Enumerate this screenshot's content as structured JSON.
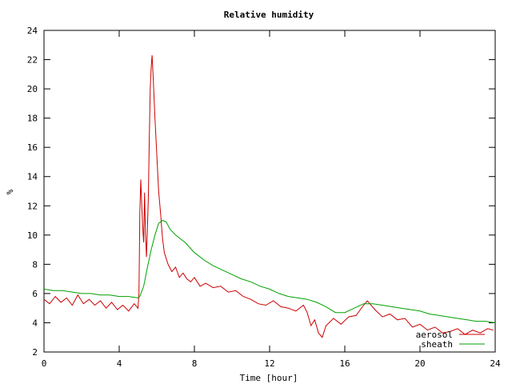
{
  "chart_data": {
    "type": "line",
    "title": "Relative humidity",
    "xlabel": "Time [hour]",
    "ylabel": "%",
    "xlim": [
      0,
      24
    ],
    "ylim": [
      2,
      24
    ],
    "x_ticks": [
      0,
      4,
      8,
      12,
      16,
      20,
      24
    ],
    "y_ticks": [
      2,
      4,
      6,
      8,
      10,
      12,
      14,
      16,
      18,
      20,
      22,
      24
    ],
    "grid": false,
    "legend_position": "bottom-right",
    "series": [
      {
        "name": "aerosol",
        "color": "#cc0000",
        "points": [
          [
            0.0,
            5.6
          ],
          [
            0.3,
            5.3
          ],
          [
            0.6,
            5.8
          ],
          [
            0.9,
            5.4
          ],
          [
            1.2,
            5.7
          ],
          [
            1.5,
            5.2
          ],
          [
            1.8,
            5.9
          ],
          [
            2.1,
            5.3
          ],
          [
            2.4,
            5.6
          ],
          [
            2.7,
            5.2
          ],
          [
            3.0,
            5.5
          ],
          [
            3.3,
            5.0
          ],
          [
            3.6,
            5.4
          ],
          [
            3.9,
            4.9
          ],
          [
            4.2,
            5.2
          ],
          [
            4.5,
            4.8
          ],
          [
            4.8,
            5.3
          ],
          [
            5.0,
            5.0
          ],
          [
            5.05,
            6.0
          ],
          [
            5.1,
            11.6
          ],
          [
            5.15,
            13.8
          ],
          [
            5.2,
            12.0
          ],
          [
            5.25,
            10.5
          ],
          [
            5.3,
            9.5
          ],
          [
            5.35,
            12.9
          ],
          [
            5.4,
            10.0
          ],
          [
            5.45,
            8.5
          ],
          [
            5.5,
            10.5
          ],
          [
            5.55,
            12.5
          ],
          [
            5.6,
            16.5
          ],
          [
            5.65,
            20.0
          ],
          [
            5.7,
            21.5
          ],
          [
            5.75,
            22.3
          ],
          [
            5.8,
            21.0
          ],
          [
            5.85,
            19.5
          ],
          [
            5.9,
            18.0
          ],
          [
            6.0,
            15.5
          ],
          [
            6.1,
            13.0
          ],
          [
            6.2,
            11.5
          ],
          [
            6.3,
            9.8
          ],
          [
            6.4,
            8.8
          ],
          [
            6.6,
            8.0
          ],
          [
            6.8,
            7.5
          ],
          [
            7.0,
            7.8
          ],
          [
            7.2,
            7.1
          ],
          [
            7.4,
            7.4
          ],
          [
            7.6,
            7.0
          ],
          [
            7.8,
            6.8
          ],
          [
            8.0,
            7.1
          ],
          [
            8.3,
            6.5
          ],
          [
            8.6,
            6.7
          ],
          [
            9.0,
            6.4
          ],
          [
            9.4,
            6.5
          ],
          [
            9.8,
            6.1
          ],
          [
            10.2,
            6.2
          ],
          [
            10.6,
            5.8
          ],
          [
            11.0,
            5.6
          ],
          [
            11.4,
            5.3
          ],
          [
            11.8,
            5.2
          ],
          [
            12.2,
            5.5
          ],
          [
            12.6,
            5.1
          ],
          [
            13.0,
            5.0
          ],
          [
            13.4,
            4.8
          ],
          [
            13.8,
            5.2
          ],
          [
            14.0,
            4.7
          ],
          [
            14.2,
            3.8
          ],
          [
            14.4,
            4.2
          ],
          [
            14.6,
            3.3
          ],
          [
            14.8,
            3.0
          ],
          [
            15.0,
            3.8
          ],
          [
            15.4,
            4.3
          ],
          [
            15.8,
            3.9
          ],
          [
            16.2,
            4.4
          ],
          [
            16.6,
            4.5
          ],
          [
            17.0,
            5.2
          ],
          [
            17.2,
            5.5
          ],
          [
            17.6,
            4.9
          ],
          [
            18.0,
            4.4
          ],
          [
            18.4,
            4.6
          ],
          [
            18.8,
            4.2
          ],
          [
            19.2,
            4.3
          ],
          [
            19.6,
            3.7
          ],
          [
            20.0,
            3.9
          ],
          [
            20.4,
            3.5
          ],
          [
            20.8,
            3.7
          ],
          [
            21.2,
            3.3
          ],
          [
            21.6,
            3.4
          ],
          [
            22.0,
            3.6
          ],
          [
            22.4,
            3.2
          ],
          [
            22.8,
            3.5
          ],
          [
            23.2,
            3.3
          ],
          [
            23.6,
            3.6
          ],
          [
            23.9,
            3.5
          ]
        ]
      },
      {
        "name": "sheath",
        "color": "#00a000",
        "points": [
          [
            0.0,
            6.3
          ],
          [
            0.5,
            6.2
          ],
          [
            1.0,
            6.2
          ],
          [
            1.5,
            6.1
          ],
          [
            2.0,
            6.0
          ],
          [
            2.5,
            6.0
          ],
          [
            3.0,
            5.9
          ],
          [
            3.5,
            5.9
          ],
          [
            4.0,
            5.8
          ],
          [
            4.5,
            5.8
          ],
          [
            5.0,
            5.7
          ],
          [
            5.1,
            5.8
          ],
          [
            5.3,
            6.5
          ],
          [
            5.5,
            7.8
          ],
          [
            5.7,
            9.0
          ],
          [
            5.9,
            10.0
          ],
          [
            6.1,
            10.8
          ],
          [
            6.3,
            11.0
          ],
          [
            6.5,
            10.9
          ],
          [
            6.7,
            10.4
          ],
          [
            7.0,
            10.0
          ],
          [
            7.5,
            9.5
          ],
          [
            8.0,
            8.8
          ],
          [
            8.5,
            8.3
          ],
          [
            9.0,
            7.9
          ],
          [
            9.5,
            7.6
          ],
          [
            10.0,
            7.3
          ],
          [
            10.5,
            7.0
          ],
          [
            11.0,
            6.8
          ],
          [
            11.5,
            6.5
          ],
          [
            12.0,
            6.3
          ],
          [
            12.5,
            6.0
          ],
          [
            13.0,
            5.8
          ],
          [
            13.5,
            5.7
          ],
          [
            14.0,
            5.6
          ],
          [
            14.5,
            5.4
          ],
          [
            15.0,
            5.1
          ],
          [
            15.5,
            4.7
          ],
          [
            16.0,
            4.7
          ],
          [
            16.5,
            5.0
          ],
          [
            17.0,
            5.3
          ],
          [
            17.5,
            5.3
          ],
          [
            18.0,
            5.2
          ],
          [
            18.5,
            5.1
          ],
          [
            19.0,
            5.0
          ],
          [
            19.5,
            4.9
          ],
          [
            20.0,
            4.8
          ],
          [
            20.5,
            4.6
          ],
          [
            21.0,
            4.5
          ],
          [
            21.5,
            4.4
          ],
          [
            22.0,
            4.3
          ],
          [
            22.5,
            4.2
          ],
          [
            23.0,
            4.1
          ],
          [
            23.5,
            4.1
          ],
          [
            24.0,
            4.0
          ]
        ]
      }
    ]
  }
}
